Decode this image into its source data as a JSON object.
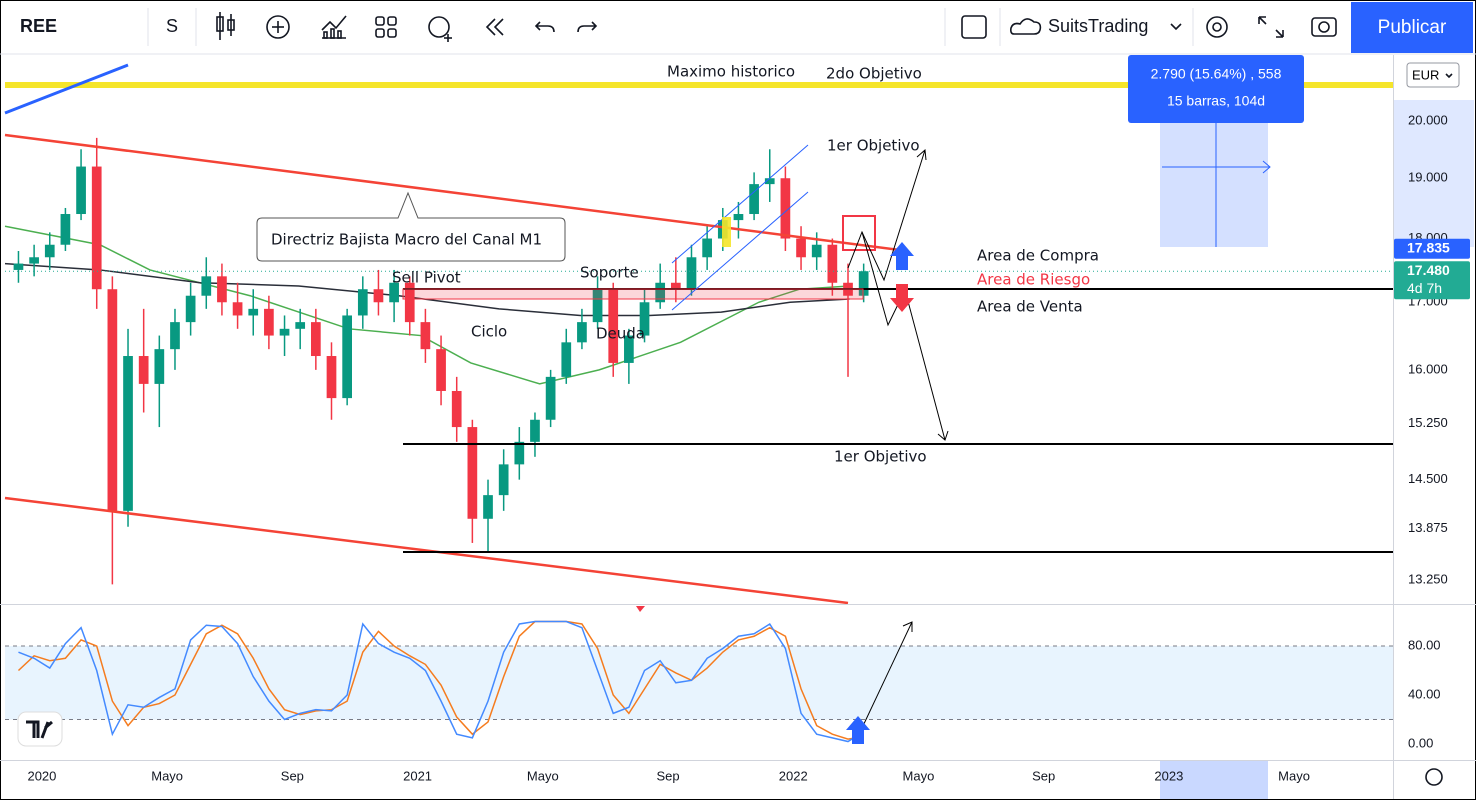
{
  "toolbar": {
    "symbol": "REE",
    "interval": "S",
    "account": "SuitsTrading",
    "publish": "Publicar"
  },
  "measure": {
    "line1": "2.790 (15.64%) , 558",
    "line2": "15 barras, 104d"
  },
  "chart_data": [
    {
      "type": "candlestick",
      "log_scale": true,
      "currency": "EUR",
      "up_color": "#089981",
      "down_color": "#f23645",
      "xlim": [
        -1.18,
        43.16
      ],
      "ylim": [
        12.97,
        21.22
      ],
      "xticks": [
        {
          "value": 0,
          "label": "2020"
        },
        {
          "value": 4,
          "label": "Mayo"
        },
        {
          "value": 8,
          "label": "Sep"
        },
        {
          "value": 12,
          "label": "2021"
        },
        {
          "value": 16,
          "label": "Mayo"
        },
        {
          "value": 20,
          "label": "Sep"
        },
        {
          "value": 24,
          "label": "2022"
        },
        {
          "value": 28,
          "label": "Mayo"
        },
        {
          "value": 32,
          "label": "Sep"
        },
        {
          "value": 36,
          "label": "2023"
        },
        {
          "value": 40,
          "label": "Mayo"
        }
      ],
      "yticks": [
        {
          "value": 13.25,
          "label": "13.250"
        },
        {
          "value": 13.875,
          "label": "13.875"
        },
        {
          "value": 14.5,
          "label": "14.500"
        },
        {
          "value": 15.25,
          "label": "15.250"
        },
        {
          "value": 16,
          "label": "16.000"
        },
        {
          "value": 17,
          "label": "17.000"
        },
        {
          "value": 18,
          "label": "18.000"
        },
        {
          "value": 19,
          "label": "19.000"
        },
        {
          "value": 20,
          "label": "20.000"
        }
      ],
      "x": [
        -0.75,
        -0.25,
        0.25,
        0.75,
        1.25,
        1.75,
        2.25,
        2.75,
        3.25,
        3.75,
        4.25,
        4.75,
        5.25,
        5.75,
        6.25,
        6.75,
        7.25,
        7.75,
        8.25,
        8.75,
        9.25,
        9.75,
        10.25,
        10.75,
        11.25,
        11.75,
        12.25,
        12.75,
        13.25,
        13.75,
        14.25,
        14.75,
        15.25,
        15.75,
        16.25,
        16.75,
        17.25,
        17.75,
        18.25,
        18.75,
        19.25,
        19.75,
        20.25,
        20.75,
        21.25,
        21.75,
        22.25,
        22.75,
        23.25,
        23.75,
        24.25,
        24.75,
        25.25,
        25.75,
        26.25
      ],
      "open": [
        17.5,
        17.6,
        17.7,
        17.9,
        18.4,
        19.2,
        17.2,
        14.1,
        16.2,
        15.8,
        16.3,
        16.7,
        17.1,
        17.4,
        17.0,
        16.8,
        16.9,
        16.5,
        16.6,
        16.7,
        16.2,
        15.6,
        16.8,
        17.2,
        17.0,
        17.3,
        16.7,
        16.3,
        15.7,
        15.2,
        14.0,
        14.3,
        14.7,
        15.0,
        15.3,
        15.9,
        16.4,
        16.7,
        17.2,
        16.1,
        16.5,
        17.0,
        17.3,
        17.2,
        17.7,
        18.0,
        18.3,
        18.4,
        18.9,
        19.0,
        18.0,
        17.7,
        17.9,
        17.3,
        17.1
      ],
      "high": [
        17.8,
        17.9,
        18.1,
        18.5,
        19.5,
        19.7,
        17.4,
        16.6,
        16.9,
        16.5,
        16.9,
        17.3,
        17.7,
        17.6,
        17.3,
        17.2,
        17.1,
        16.8,
        16.9,
        16.9,
        16.4,
        16.9,
        17.4,
        17.5,
        17.5,
        17.4,
        16.9,
        16.5,
        15.9,
        15.3,
        14.5,
        14.9,
        15.2,
        15.4,
        16.0,
        16.6,
        16.9,
        17.4,
        17.3,
        16.6,
        17.2,
        17.6,
        17.7,
        17.9,
        18.2,
        18.5,
        18.6,
        19.1,
        19.5,
        19.2,
        18.2,
        18.1,
        18.0,
        17.6,
        17.6
      ],
      "low": [
        17.3,
        17.4,
        17.5,
        17.8,
        18.3,
        16.9,
        13.2,
        13.9,
        15.4,
        15.2,
        16.0,
        16.5,
        16.9,
        16.8,
        16.6,
        16.5,
        16.3,
        16.2,
        16.3,
        16.0,
        15.3,
        15.5,
        16.6,
        16.8,
        16.7,
        16.5,
        16.1,
        15.5,
        15.0,
        13.7,
        13.6,
        14.1,
        14.5,
        14.8,
        15.2,
        15.8,
        16.3,
        16.6,
        15.9,
        15.8,
        16.4,
        16.9,
        17.0,
        17.1,
        17.5,
        17.8,
        18.0,
        18.3,
        18.6,
        17.8,
        17.5,
        17.5,
        17.1,
        15.9,
        17.0
      ],
      "close": [
        17.6,
        17.7,
        17.9,
        18.4,
        19.2,
        17.2,
        14.1,
        16.2,
        15.8,
        16.3,
        16.7,
        17.1,
        17.4,
        17.0,
        16.8,
        16.9,
        16.5,
        16.6,
        16.7,
        16.2,
        15.6,
        16.8,
        17.2,
        17.0,
        17.3,
        16.7,
        16.3,
        15.7,
        15.2,
        14.0,
        14.3,
        14.7,
        15.0,
        15.3,
        15.9,
        16.4,
        16.7,
        17.2,
        16.1,
        16.5,
        17.0,
        17.3,
        17.2,
        17.7,
        18.0,
        18.3,
        18.4,
        18.9,
        19.0,
        18.0,
        17.7,
        17.9,
        17.3,
        17.1,
        17.48
      ],
      "overlays": [
        {
          "color": "#4caf50",
          "x": [
            -1.18,
            1.85,
            3.45,
            6.65,
            9.8,
            12.1,
            13.7,
            15.9,
            17.8,
            20.4,
            22.9,
            24.2,
            25.8
          ],
          "values": [
            18.2,
            17.9,
            17.5,
            17.1,
            16.6,
            16.5,
            16.1,
            15.8,
            16.0,
            16.4,
            17.0,
            17.2,
            17.25
          ]
        },
        {
          "color": "#2a2e39",
          "x": [
            -1.18,
            1.85,
            5.05,
            8.2,
            11.4,
            14.6,
            17.2,
            19.4,
            21.7,
            23.9,
            25.8
          ],
          "values": [
            17.6,
            17.5,
            17.3,
            17.25,
            17.1,
            16.9,
            16.8,
            16.8,
            16.85,
            17.0,
            17.05
          ]
        }
      ],
      "last_price": {
        "value": 17.48,
        "label": "17.480",
        "color": "#22ab94"
      },
      "price_labels": [
        {
          "value": 17.835,
          "label": "17.835",
          "color": "#2962ff"
        }
      ],
      "countdown": "4d 7h",
      "annotations": [
        "Maximo historico",
        "2do Objetivo",
        "1er Objetivo",
        "Directriz Bajista Macro del Canal M1",
        "Sell Pivot",
        "Soporte",
        "Ciclo",
        "Deuda",
        "Area de Compra",
        "Area de Riesgo",
        "Area de Venta",
        "1er Objetivo"
      ]
    },
    {
      "type": "line",
      "ylim": [
        -13.1,
        112.7
      ],
      "band": [
        20,
        80
      ],
      "band_color": "rgba(33,150,243,0.1)",
      "yticks": [
        {
          "value": 0,
          "label": "0.00"
        },
        {
          "value": 40,
          "label": "40.00"
        },
        {
          "value": 80,
          "label": "80.00"
        }
      ],
      "x": [
        -0.75,
        -0.25,
        0.25,
        0.75,
        1.25,
        1.75,
        2.25,
        2.75,
        3.25,
        3.75,
        4.25,
        4.75,
        5.25,
        5.75,
        6.25,
        6.75,
        7.25,
        7.75,
        8.25,
        8.75,
        9.25,
        9.75,
        10.25,
        10.75,
        11.25,
        11.75,
        12.25,
        12.75,
        13.25,
        13.75,
        14.25,
        14.75,
        15.25,
        15.75,
        16.25,
        16.75,
        17.25,
        17.75,
        18.25,
        18.75,
        19.25,
        19.75,
        20.25,
        20.75,
        21.25,
        21.75,
        22.25,
        22.75,
        23.25,
        23.75,
        24.25,
        24.75,
        25.25,
        25.75,
        26.25
      ],
      "series": [
        {
          "color": "#f57c1f",
          "values": [
            60,
            72,
            68,
            70,
            85,
            80,
            35,
            15,
            30,
            33,
            40,
            65,
            90,
            97,
            90,
            70,
            45,
            28,
            24,
            27,
            28,
            35,
            75,
            92,
            80,
            72,
            65,
            48,
            22,
            8,
            18,
            55,
            88,
            100,
            100,
            100,
            98,
            78,
            40,
            25,
            45,
            65,
            58,
            52,
            62,
            75,
            85,
            88,
            95,
            88,
            45,
            15,
            8,
            4,
            6
          ]
        },
        {
          "color": "#448aff",
          "values": [
            75,
            70,
            62,
            82,
            95,
            60,
            8,
            32,
            30,
            38,
            45,
            85,
            97,
            96,
            82,
            55,
            35,
            20,
            25,
            28,
            27,
            40,
            98,
            82,
            75,
            70,
            60,
            35,
            8,
            5,
            35,
            75,
            98,
            100,
            100,
            100,
            95,
            60,
            25,
            30,
            60,
            68,
            50,
            52,
            70,
            78,
            88,
            90,
            98,
            78,
            25,
            8,
            5,
            2,
            10
          ]
        }
      ]
    }
  ]
}
